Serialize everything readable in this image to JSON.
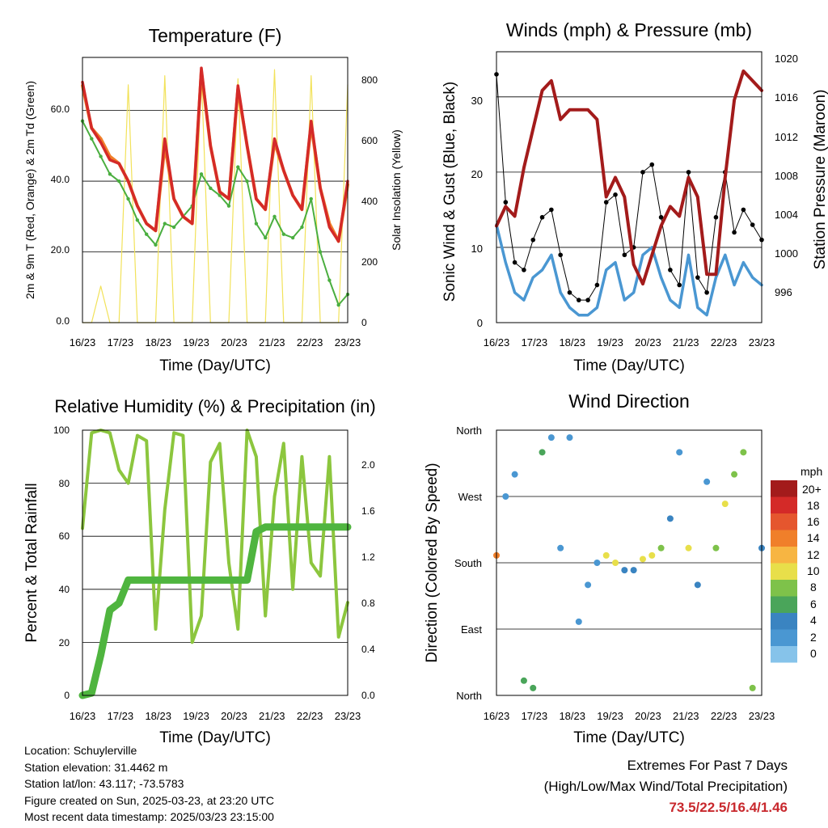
{
  "charts": {
    "temperature": {
      "title": "Temperature (F)",
      "ylabel_left": "2m & 9m T (Red, Orange) & 2m Td (Green)",
      "ylabel_right": "Solar Insolation (Yellow)",
      "xlabel": "Time (Day/UTC)",
      "y_ticks_left": [
        "0.0",
        "20.0",
        "40.0",
        "60.0"
      ],
      "y_ticks_right": [
        "0",
        "200",
        "400",
        "600",
        "800"
      ]
    },
    "winds": {
      "title": "Winds (mph) & Pressure (mb)",
      "ylabel_left": "Sonic Wind & Gust (Blue, Black)",
      "ylabel_right": "Station Pressure (Maroon)",
      "xlabel": "Time (Day/UTC)",
      "y_ticks_left": [
        "0",
        "10",
        "20",
        "30"
      ],
      "y_ticks_right": [
        "996",
        "1000",
        "1004",
        "1008",
        "1012",
        "1016",
        "1020"
      ]
    },
    "humidity": {
      "title": "Relative Humidity (%) & Precipitation (in)",
      "ylabel_left": "Percent & Total Rainfall",
      "xlabel": "Time (Day/UTC)",
      "y_ticks_left": [
        "0",
        "20",
        "40",
        "60",
        "80",
        "100"
      ],
      "y_ticks_right": [
        "0.0",
        "0.4",
        "0.8",
        "1.2",
        "1.6",
        "2.0"
      ]
    },
    "direction": {
      "title": "Wind Direction",
      "ylabel_left": "Direction (Colored By Speed)",
      "xlabel": "Time (Day/UTC)",
      "y_ticks_left": [
        "North",
        "East",
        "South",
        "West",
        "North"
      ],
      "legend_title": "mph",
      "legend_labels": [
        "20+",
        "18",
        "16",
        "14",
        "12",
        "10",
        "8",
        "6",
        "4",
        "2",
        "0"
      ]
    }
  },
  "x_ticks": [
    "16/23",
    "17/23",
    "18/23",
    "19/23",
    "20/23",
    "21/23",
    "22/23",
    "23/23"
  ],
  "info": {
    "location": "Location: Schuylerville",
    "elevation": "Station elevation: 31.4462 m",
    "latlon": "Station lat/lon: 43.117; -73.5783",
    "created": "Figure created on Sun, 2025-03-23, at 23:20 UTC",
    "recent": "Most recent data timestamp: 2025/03/23 23:15:00"
  },
  "extremes": {
    "line1": "Extremes For Past 7 Days",
    "line2": "(High/Low/Max Wind/Total Precipitation)",
    "values": "73.5/22.5/16.4/1.46"
  },
  "colors": {
    "temp_2m": "#d42a28",
    "temp_9m": "#f07f2a",
    "dewpoint": "#4aae3f",
    "solar": "#f2e25a",
    "wind": "#4a97d2",
    "gust": "#000000",
    "pressure": "#a31b1b",
    "rh": "#8cc63e",
    "precip": "#4fb53f",
    "speed_scale": [
      "#bde3f7",
      "#86c3ea",
      "#4a97d2",
      "#3a84c1",
      "#4aa55a",
      "#7ec24a",
      "#e8df4a",
      "#f7b542",
      "#f07f2a",
      "#e5562e",
      "#d42a28",
      "#a31b1b"
    ]
  },
  "chart_data": [
    {
      "type": "line",
      "title": "Temperature (F)",
      "x": [
        "16/23",
        "17/00",
        "17/06",
        "17/12",
        "17/18",
        "18/00",
        "18/06",
        "18/12",
        "18/18",
        "19/00",
        "19/06",
        "19/12",
        "19/18",
        "20/00",
        "20/06",
        "20/12",
        "20/18",
        "21/00",
        "21/06",
        "21/12",
        "21/18",
        "22/00",
        "22/06",
        "22/12",
        "22/18",
        "23/00",
        "23/06",
        "23/12",
        "23/18",
        "23/23"
      ],
      "series": [
        {
          "name": "2m T",
          "axis": "left",
          "values": [
            68,
            55,
            51,
            46,
            45,
            40,
            33,
            28,
            26,
            52,
            35,
            30,
            28,
            72,
            50,
            37,
            35,
            67,
            50,
            35,
            32,
            52,
            43,
            36,
            32,
            57,
            38,
            27,
            23,
            40
          ]
        },
        {
          "name": "9m T",
          "axis": "left",
          "values": [
            67,
            55,
            52,
            47,
            45,
            40,
            33,
            28,
            26,
            50,
            35,
            30,
            28,
            71,
            50,
            37,
            35,
            66,
            50,
            35,
            32,
            51,
            43,
            36,
            32,
            56,
            38,
            28,
            23,
            39
          ]
        },
        {
          "name": "2m Td",
          "axis": "left",
          "values": [
            57,
            52,
            47,
            42,
            40,
            35,
            29,
            25,
            22,
            28,
            27,
            30,
            33,
            42,
            38,
            36,
            33,
            44,
            40,
            28,
            24,
            30,
            25,
            24,
            27,
            35,
            20,
            12,
            5,
            8
          ]
        },
        {
          "name": "Solar Insolation",
          "axis": "right",
          "values": [
            0,
            0,
            120,
            0,
            0,
            780,
            0,
            0,
            0,
            810,
            0,
            0,
            0,
            820,
            0,
            0,
            0,
            800,
            0,
            0,
            0,
            830,
            0,
            0,
            0,
            810,
            0,
            0,
            0,
            780
          ]
        }
      ],
      "ylim_left": [
        0,
        75
      ],
      "ylim_right": [
        0,
        870
      ]
    },
    {
      "type": "line",
      "title": "Winds (mph) & Pressure (mb)",
      "x": [
        "16/23",
        "17/00",
        "17/06",
        "17/12",
        "17/18",
        "18/00",
        "18/06",
        "18/12",
        "18/18",
        "19/00",
        "19/06",
        "19/12",
        "19/18",
        "20/00",
        "20/06",
        "20/12",
        "20/18",
        "21/00",
        "21/06",
        "21/12",
        "21/18",
        "22/00",
        "22/06",
        "22/12",
        "22/18",
        "23/00",
        "23/06",
        "23/12",
        "23/18",
        "23/23"
      ],
      "series": [
        {
          "name": "Sonic Wind",
          "axis": "left",
          "values": [
            13,
            8,
            4,
            3,
            6,
            7,
            9,
            4,
            2,
            1,
            1,
            2,
            7,
            8,
            3,
            4,
            9,
            10,
            6,
            3,
            2,
            9,
            2,
            1,
            6,
            9,
            5,
            8,
            6,
            5
          ]
        },
        {
          "name": "Gust",
          "axis": "left",
          "values": [
            33,
            16,
            8,
            7,
            11,
            14,
            15,
            9,
            4,
            3,
            3,
            5,
            16,
            17,
            9,
            10,
            20,
            21,
            14,
            7,
            5,
            20,
            6,
            4,
            14,
            20,
            12,
            15,
            13,
            11
          ]
        },
        {
          "name": "Station Pressure",
          "axis": "right",
          "values": [
            1003,
            1005,
            1004,
            1009,
            1013,
            1017,
            1018,
            1014,
            1015,
            1015,
            1015,
            1014,
            1006,
            1008,
            1006,
            999,
            997,
            1000,
            1003,
            1005,
            1004,
            1008,
            1006,
            998,
            998,
            1008,
            1016,
            1019,
            1018,
            1017
          ]
        }
      ],
      "ylim_left": [
        0,
        36
      ],
      "ylim_right": [
        993,
        1021
      ]
    },
    {
      "type": "line",
      "title": "Relative Humidity (%) & Precipitation (in)",
      "x": [
        "16/23",
        "17/00",
        "17/06",
        "17/12",
        "17/18",
        "18/00",
        "18/06",
        "18/12",
        "18/18",
        "19/00",
        "19/06",
        "19/12",
        "19/18",
        "20/00",
        "20/06",
        "20/12",
        "20/18",
        "21/00",
        "21/06",
        "21/12",
        "21/18",
        "22/00",
        "22/06",
        "22/12",
        "22/18",
        "23/00",
        "23/06",
        "23/12",
        "23/18",
        "23/23"
      ],
      "series": [
        {
          "name": "Relative Humidity",
          "axis": "left",
          "values": [
            63,
            99,
            100,
            99,
            85,
            80,
            98,
            96,
            25,
            70,
            99,
            98,
            20,
            30,
            88,
            95,
            50,
            25,
            100,
            90,
            30,
            75,
            95,
            40,
            90,
            50,
            45,
            90,
            22,
            35
          ]
        },
        {
          "name": "Total Precipitation",
          "axis": "right",
          "values": [
            0,
            0.02,
            0.35,
            0.74,
            0.8,
            1.0,
            1.0,
            1.0,
            1.0,
            1.0,
            1.0,
            1.0,
            1.0,
            1.0,
            1.0,
            1.0,
            1.0,
            1.0,
            1.0,
            1.42,
            1.46,
            1.46,
            1.46,
            1.46,
            1.46,
            1.46,
            1.46,
            1.46,
            1.46,
            1.46
          ]
        }
      ],
      "ylim_left": [
        0,
        100
      ],
      "ylim_right": [
        0,
        2.3
      ]
    },
    {
      "type": "scatter",
      "title": "Wind Direction",
      "x": [
        "16/23",
        "17/00",
        "17/06",
        "17/12",
        "17/18",
        "18/00",
        "18/06",
        "18/12",
        "18/18",
        "19/00",
        "19/06",
        "19/12",
        "19/18",
        "20/00",
        "20/06",
        "20/12",
        "20/18",
        "21/00",
        "21/06",
        "21/12",
        "21/18",
        "22/00",
        "22/06",
        "22/12",
        "22/18",
        "23/00",
        "23/06",
        "23/12",
        "23/18",
        "23/23"
      ],
      "series": [
        {
          "name": "Direction",
          "values": [
            190,
            270,
            300,
            20,
            10,
            330,
            350,
            200,
            350,
            100,
            150,
            180,
            190,
            180,
            170,
            170,
            185,
            190,
            200,
            240,
            330,
            200,
            150,
            290,
            200,
            260,
            300,
            330,
            10,
            200
          ]
        },
        {
          "name": "Speed",
          "values": [
            14,
            3,
            3,
            6,
            6,
            7,
            3,
            2,
            2,
            3,
            2,
            3,
            10,
            11,
            4,
            4,
            11,
            10,
            9,
            4,
            2,
            11,
            4,
            2,
            8,
            11,
            9,
            8,
            8,
            5
          ]
        }
      ],
      "ylim": [
        0,
        360
      ]
    }
  ]
}
